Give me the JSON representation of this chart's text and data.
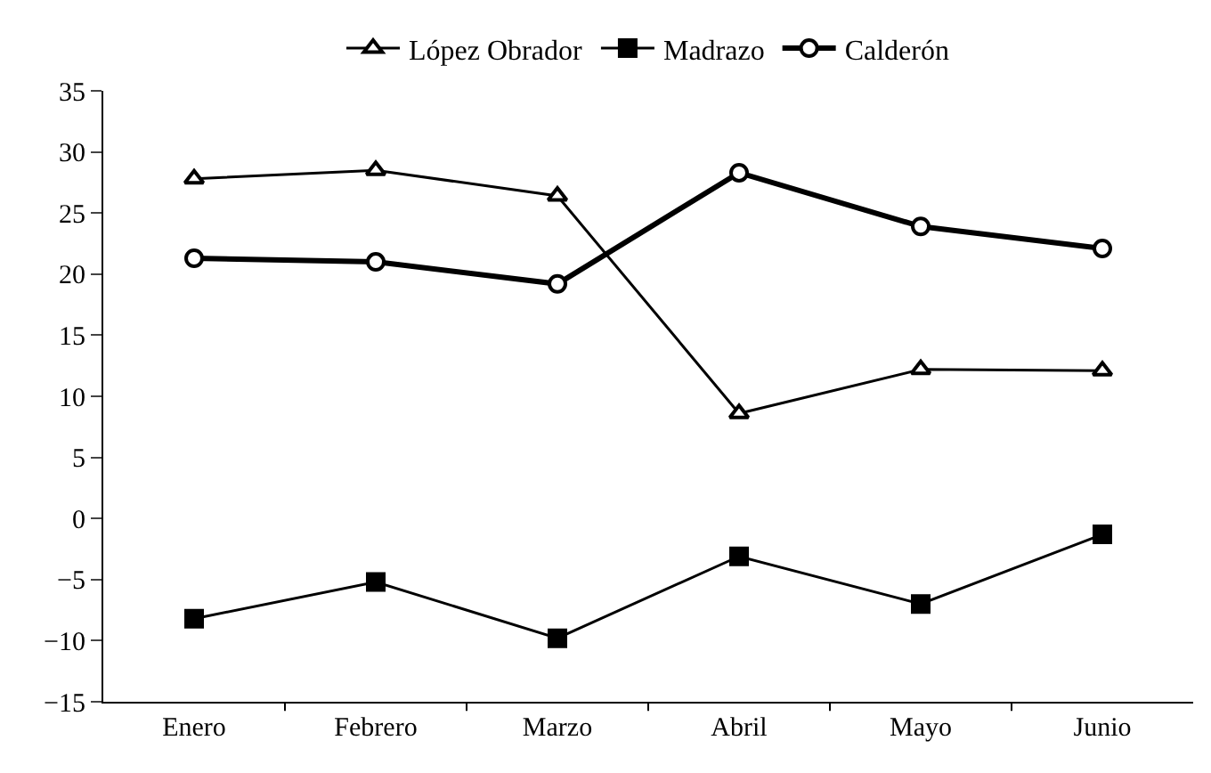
{
  "chart_data": {
    "type": "line",
    "categories": [
      "Enero",
      "Febrero",
      "Marzo",
      "Abril",
      "Mayo",
      "Junio"
    ],
    "series": [
      {
        "name": "López Obrador",
        "color": "#000000",
        "marker": "triangle",
        "values": [
          27.8,
          28.5,
          26.4,
          8.6,
          12.2,
          12.1
        ]
      },
      {
        "name": "Madrazo",
        "color": "#000000",
        "marker": "square",
        "values": [
          -8.2,
          -5.2,
          -9.8,
          -3.1,
          -7.0,
          -1.3
        ]
      },
      {
        "name": "Calderón",
        "color": "#000000",
        "marker": "circle",
        "values": [
          21.3,
          21.0,
          19.2,
          28.3,
          23.9,
          22.1
        ]
      }
    ],
    "ylim": [
      -15,
      35
    ],
    "yticks": [
      {
        "value": -15,
        "label": "−15"
      },
      {
        "value": -10,
        "label": "−10"
      },
      {
        "value": -5,
        "label": "−5"
      },
      0,
      5,
      10,
      15,
      20,
      25,
      30,
      35
    ],
    "grid": false,
    "legend": "top",
    "line_style": "solid"
  }
}
